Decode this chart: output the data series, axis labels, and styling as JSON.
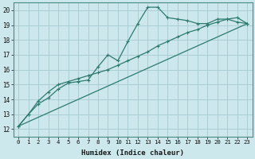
{
  "title": "",
  "xlabel": "Humidex (Indice chaleur)",
  "ylabel": "",
  "bg_color": "#cce8ec",
  "grid_color": "#aacdd4",
  "line_color": "#2d7a6e",
  "xlim": [
    -0.5,
    23.5
  ],
  "ylim": [
    11.5,
    20.5
  ],
  "xticks": [
    0,
    1,
    2,
    3,
    4,
    5,
    6,
    7,
    8,
    9,
    10,
    11,
    12,
    13,
    14,
    15,
    16,
    17,
    18,
    19,
    20,
    21,
    22,
    23
  ],
  "yticks": [
    12,
    13,
    14,
    15,
    16,
    17,
    18,
    19,
    20
  ],
  "line1_x": [
    0,
    1,
    2,
    3,
    4,
    5,
    6,
    7,
    8,
    9,
    10,
    11,
    12,
    13,
    14,
    15,
    16,
    17,
    18,
    19,
    20,
    21,
    22,
    23
  ],
  "line1_y": [
    12.2,
    13.0,
    13.7,
    14.1,
    14.7,
    15.1,
    15.2,
    15.3,
    16.2,
    17.0,
    16.6,
    17.9,
    19.1,
    20.2,
    20.2,
    19.5,
    19.4,
    19.3,
    19.1,
    19.1,
    19.4,
    19.4,
    19.2,
    19.1
  ],
  "line2_x": [
    0,
    1,
    2,
    3,
    4,
    5,
    6,
    7,
    8,
    9,
    10,
    11,
    12,
    13,
    14,
    15,
    16,
    17,
    18,
    19,
    20,
    21,
    22,
    23
  ],
  "line2_y": [
    12.2,
    13.0,
    13.9,
    14.5,
    15.0,
    15.2,
    15.4,
    15.6,
    15.8,
    16.0,
    16.3,
    16.6,
    16.9,
    17.2,
    17.6,
    17.9,
    18.2,
    18.5,
    18.7,
    19.0,
    19.2,
    19.4,
    19.5,
    19.1
  ],
  "line3_x": [
    0,
    23
  ],
  "line3_y": [
    12.2,
    19.1
  ],
  "xlabel_fontsize": 6.5,
  "tick_fontsize": 5.2
}
